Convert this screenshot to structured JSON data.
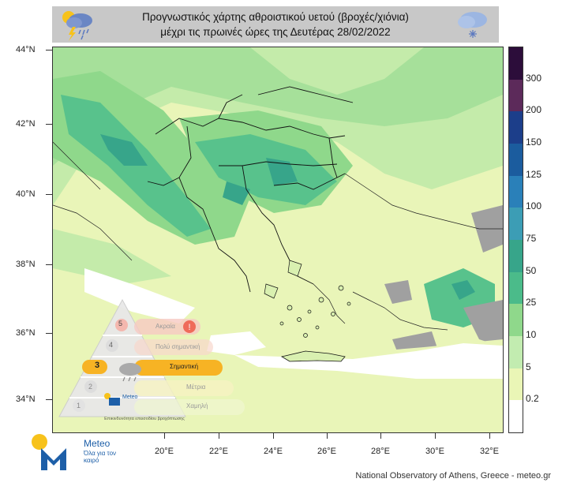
{
  "title": {
    "line1": "Προγνωστικός χάρτης αθροιστικού υετού (βροχές/χιόνια)",
    "line2": "μέχρι τις πρωινές ώρες της Δευτέρας 28/02/2022"
  },
  "icons": {
    "left": "thunderstorm-rain-icon",
    "right": "snow-cloud-icon"
  },
  "axes": {
    "lat_labels": [
      "44°N",
      "42°N",
      "40°N",
      "38°N",
      "36°N",
      "34°N"
    ],
    "lon_labels": [
      "20°E",
      "22°E",
      "24°E",
      "26°E",
      "28°E",
      "30°E",
      "32°E"
    ]
  },
  "legend": {
    "labels": [
      "300",
      "200",
      "150",
      "125",
      "100",
      "75",
      "50",
      "25",
      "10",
      "5",
      "0.2"
    ],
    "colors": [
      "#2c0d3a",
      "#5c2a5a",
      "#1c3e8a",
      "#1b5c9e",
      "#2a80b9",
      "#3c9db5",
      "#37a58a",
      "#4bbb8a",
      "#8fd88b",
      "#c2ecb0",
      "#eaf6b6",
      "#ffffff"
    ]
  },
  "hazard_scale": {
    "levels": [
      {
        "number": "5",
        "label": "Ακραία"
      },
      {
        "number": "4",
        "label": "Πολύ σημαντική"
      },
      {
        "number": "3",
        "label": "Σημαντική"
      },
      {
        "number": "2",
        "label": "Μέτρια"
      },
      {
        "number": "1",
        "label": "Χαμηλή"
      }
    ],
    "active_level": "3",
    "brand": "Meteo",
    "caption": "Επικινδυνότητα επεισοδίου βροχόπτωσης"
  },
  "brand": {
    "name": "Meteo",
    "slogan": "Όλα για τον καιρό"
  },
  "credit": "National Observatory of Athens, Greece - meteo.gr"
}
